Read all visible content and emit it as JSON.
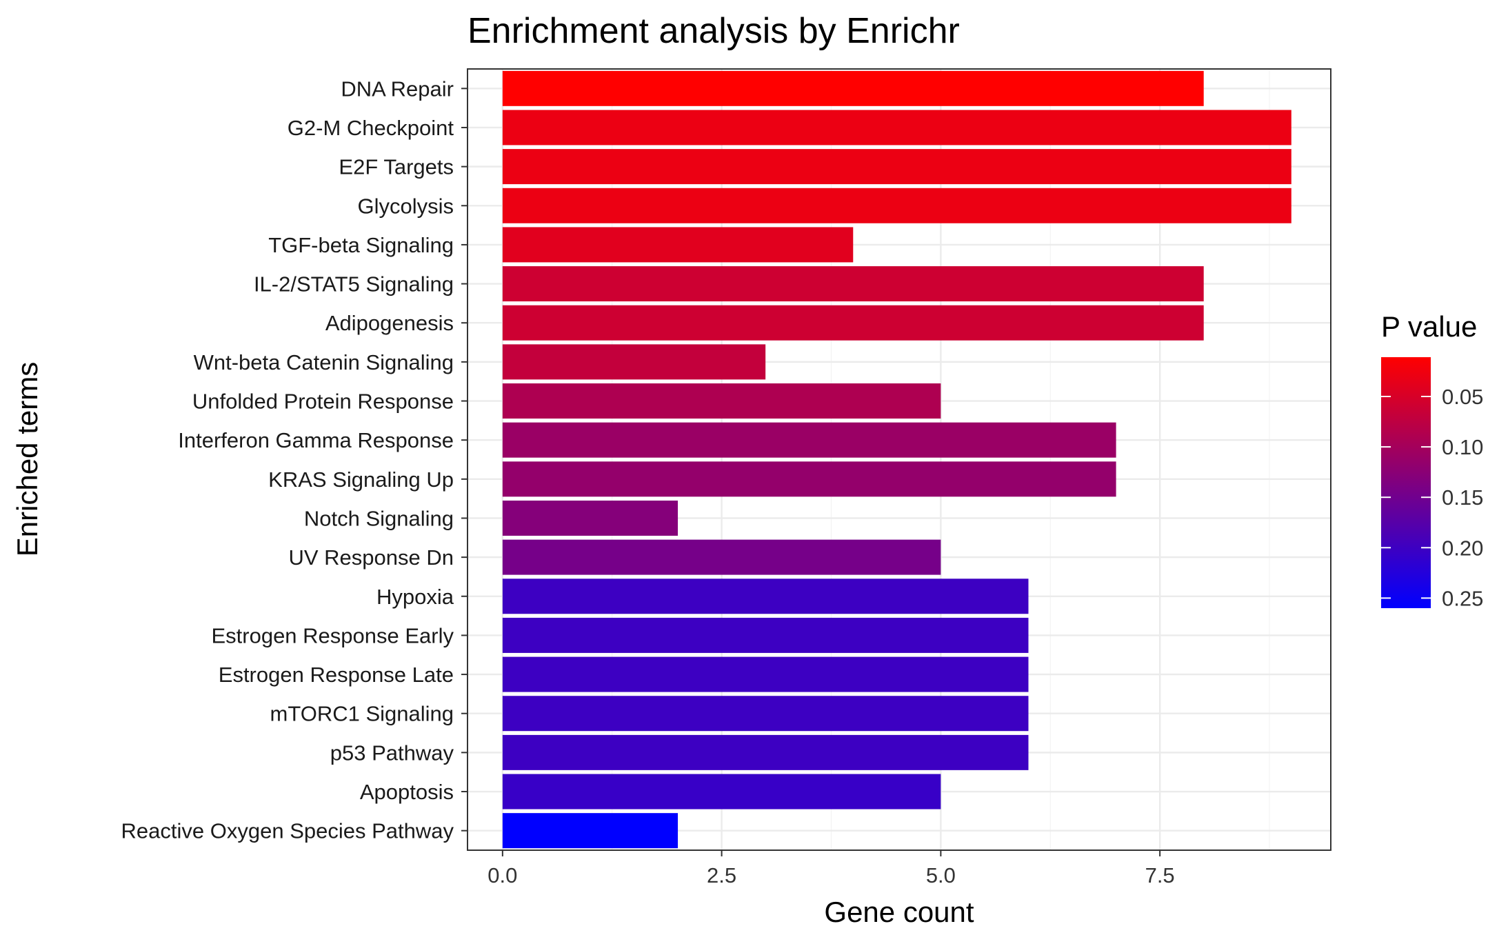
{
  "chart_data": {
    "type": "bar",
    "orientation": "horizontal",
    "title": "Enrichment analysis by Enrichr",
    "xlabel": "Gene count",
    "ylabel": "Enriched terms",
    "xlim": [
      -0.4,
      9.45
    ],
    "x_ticks": [
      0,
      2.5,
      5,
      7.5
    ],
    "x_tick_labels": [
      "0.0",
      "2.5",
      "5.0",
      "7.5"
    ],
    "grid": true,
    "categories": [
      "DNA Repair",
      "G2-M Checkpoint",
      "E2F Targets",
      "Glycolysis",
      "TGF-beta Signaling",
      "IL-2/STAT5 Signaling",
      "Adipogenesis",
      "Wnt-beta Catenin Signaling",
      "Unfolded Protein Response",
      "Interferon Gamma Response",
      "KRAS Signaling Up",
      "Notch Signaling",
      "UV Response Dn",
      "Hypoxia",
      "Estrogen Response Early",
      "Estrogen Response Late",
      "mTORC1 Signaling",
      "p53 Pathway",
      "Apoptosis",
      "Reactive Oxygen Species Pathway"
    ],
    "values": [
      8,
      9,
      9,
      9,
      4,
      8,
      8,
      3,
      5,
      7,
      7,
      2,
      5,
      6,
      6,
      6,
      6,
      6,
      5,
      2
    ],
    "p_values": [
      0.011,
      0.03,
      0.03,
      0.03,
      0.04,
      0.06,
      0.06,
      0.07,
      0.09,
      0.11,
      0.115,
      0.13,
      0.145,
      0.2,
      0.2,
      0.2,
      0.2,
      0.2,
      0.205,
      0.26
    ],
    "legend": {
      "title": "P value",
      "placement": "right",
      "ticks": [
        0.05,
        0.1,
        0.15,
        0.2,
        0.25
      ],
      "tick_labels": [
        "0.05",
        "0.10",
        "0.15",
        "0.20",
        "0.25"
      ],
      "range": [
        0.011,
        0.26
      ],
      "low_color": "#ff0000",
      "high_color": "#0000ff"
    }
  }
}
